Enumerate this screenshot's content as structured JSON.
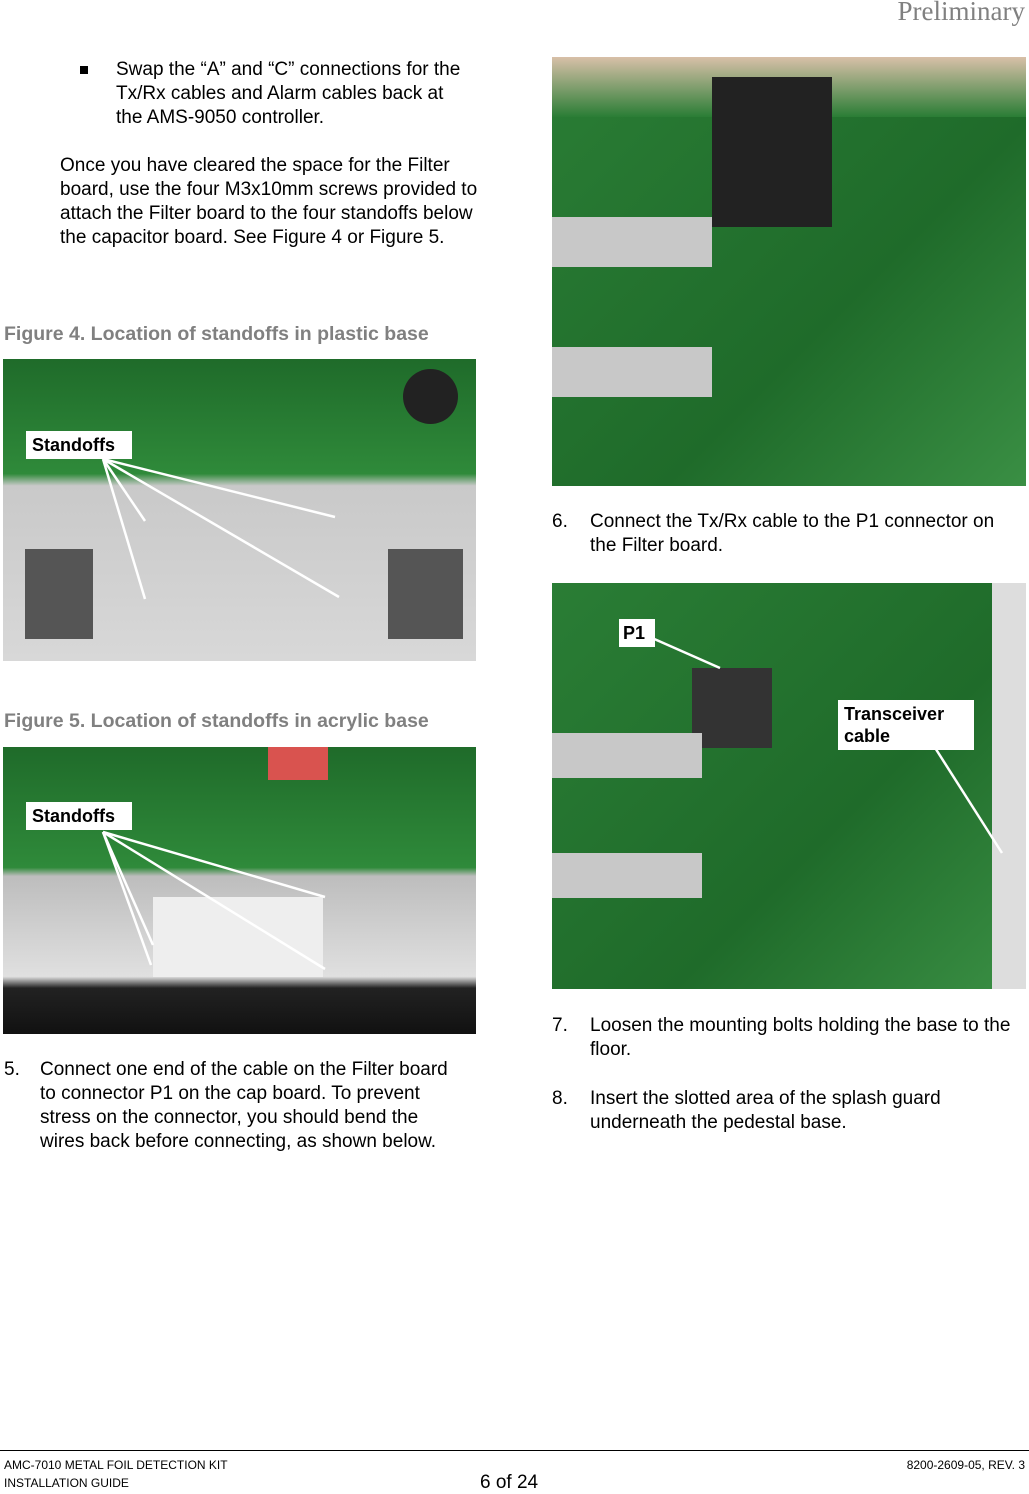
{
  "header": {
    "title": "Preliminary"
  },
  "left": {
    "bullet": "Swap the “A” and “C” connections for the Tx/Rx cables and Alarm cables back at the AMS-9050 controller.",
    "paragraph": "Once you have cleared the space for the Filter board, use the four M3x10mm screws provided to attach the Filter board to the four standoffs below the capacitor board. See Figure 4 or Figure 5.",
    "figure4": {
      "caption": "Figure 4. Location of standoffs in plastic base",
      "label": "Standoffs"
    },
    "figure5": {
      "caption": "Figure 5. Location of standoffs in acrylic base",
      "label": "Standoffs"
    },
    "step5": {
      "number": "5.",
      "text": "Connect one end of the cable on the Filter board to connector P1 on the cap board. To prevent stress on the connector, you should bend the wires back before connecting, as shown below."
    }
  },
  "right": {
    "step6": {
      "number": "6.",
      "text": "Connect the Tx/Rx cable to the P1 connector on the Filter board."
    },
    "photo2": {
      "label_p1": "P1",
      "label_cable": "Transceiver cable"
    },
    "step7": {
      "number": "7.",
      "text": "Loosen the mounting bolts holding the base to the floor."
    },
    "step8": {
      "number": "8.",
      "text": "Insert the slotted area of the splash guard underneath the pedestal base."
    }
  },
  "footer": {
    "line1": "AMC-7010 METAL FOIL DETECTION KIT",
    "line2": "INSTALLATION GUIDE",
    "page": "6 of 24",
    "doc": "8200-2609-05, REV. 3"
  }
}
